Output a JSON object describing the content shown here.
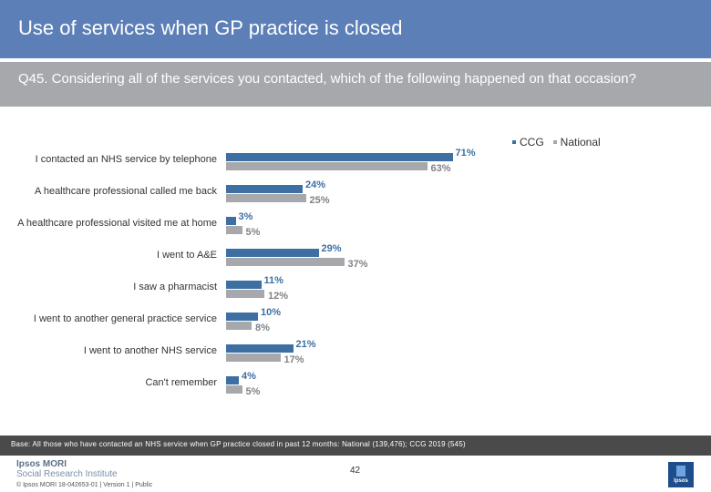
{
  "header": {
    "title": "Use of services when GP practice is closed",
    "question": "Q45. Considering all of the services you contacted, which of the following happened on that occasion?"
  },
  "colors": {
    "ccg": "#3d6fa3",
    "national": "#a6a8ab",
    "title_bg": "#5b7fb6"
  },
  "chart_data": {
    "type": "bar",
    "orientation": "horizontal",
    "categories": [
      "I contacted an NHS service by telephone",
      "A healthcare professional called me back",
      "A healthcare professional visited me at home",
      "I went to A&E",
      "I saw a pharmacist",
      "I went to another general practice service",
      "I went to another NHS service",
      "Can't remember"
    ],
    "series": [
      {
        "name": "CCG",
        "values": [
          71,
          24,
          3,
          29,
          11,
          10,
          21,
          4
        ],
        "labels": [
          "71%",
          "24%",
          "3%",
          "29%",
          "11%",
          "10%",
          "21%",
          "4%"
        ]
      },
      {
        "name": "National",
        "values": [
          63,
          25,
          5,
          37,
          12,
          8,
          17,
          5
        ],
        "labels": [
          "63%",
          "25%",
          "5%",
          "37%",
          "12%",
          "8%",
          "17%",
          "5%"
        ]
      }
    ],
    "xlim": [
      0,
      100
    ],
    "legend_position": "top-right"
  },
  "base_text": "Base: All those who have contacted an NHS service when GP practice closed in past 12 months: National (139,476); CCG 2019 (545)",
  "footer": {
    "logo_line1": "Ipsos MORI",
    "logo_line2": "Social Research Institute",
    "page_number": "42",
    "copyright": "© Ipsos MORI    18-042653-01 | Version 1 | Public",
    "badge_text": "Ipsos"
  }
}
